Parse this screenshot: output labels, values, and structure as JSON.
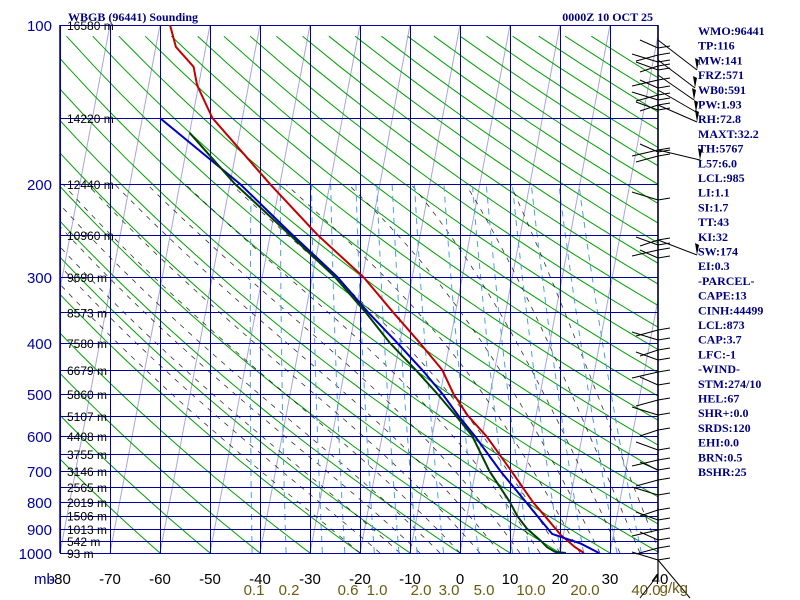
{
  "header": {
    "station": "WBGB (96441) Sounding",
    "time": "0000Z 10 OCT 25"
  },
  "chart_data": {
    "type": "skew-t",
    "title": "WBGB (96441) Sounding",
    "time_label": "0000Z 10 OCT 25",
    "y_axis_unit": "mb",
    "x_axis_unit": "g/kg",
    "pressure_ticks": [
      100,
      200,
      300,
      400,
      500,
      600,
      700,
      800,
      900,
      1000
    ],
    "temperature_ticks": [
      -80,
      -70,
      -60,
      -50,
      -40,
      -30,
      -20,
      -10,
      0,
      10,
      20,
      30,
      40
    ],
    "xlim": [
      -80,
      40
    ],
    "ylim": [
      1000,
      100
    ],
    "height_labels": [
      {
        "p": 100,
        "label": "16580 m"
      },
      {
        "p": 150,
        "label": "14220 m"
      },
      {
        "p": 200,
        "label": "12440 m"
      },
      {
        "p": 250,
        "label": "10960 m"
      },
      {
        "p": 300,
        "label": "9690 m"
      },
      {
        "p": 350,
        "label": "8573 m"
      },
      {
        "p": 400,
        "label": "7580 m"
      },
      {
        "p": 450,
        "label": "6679 m"
      },
      {
        "p": 500,
        "label": "5860 m"
      },
      {
        "p": 550,
        "label": "5107 m"
      },
      {
        "p": 600,
        "label": "4408 m"
      },
      {
        "p": 650,
        "label": "3755 m"
      },
      {
        "p": 700,
        "label": "3146 m"
      },
      {
        "p": 750,
        "label": "2565 m"
      },
      {
        "p": 800,
        "label": "2019 m"
      },
      {
        "p": 850,
        "label": "1506 m"
      },
      {
        "p": 900,
        "label": "1013 m"
      },
      {
        "p": 950,
        "label": "542 m"
      },
      {
        "p": 1000,
        "label": "93 m"
      }
    ],
    "mixing_ratio_labels": [
      "0.1",
      "0.2",
      "0.6",
      "1.0",
      "2.0",
      "3.0",
      "5.0",
      "10.0",
      "20.0",
      "40.0"
    ],
    "series": [
      {
        "id": "temperature",
        "color": "#c00000",
        "points": [
          {
            "p": 1000,
            "t": 24.8
          },
          {
            "p": 975,
            "t": 22.8
          },
          {
            "p": 925,
            "t": 19.5
          },
          {
            "p": 850,
            "t": 15.5
          },
          {
            "p": 800,
            "t": 12.6
          },
          {
            "p": 700,
            "t": 7.2
          },
          {
            "p": 600,
            "t": 0.8
          },
          {
            "p": 550,
            "t": -3.6
          },
          {
            "p": 500,
            "t": -7.3
          },
          {
            "p": 450,
            "t": -10.5
          },
          {
            "p": 400,
            "t": -16.0
          },
          {
            "p": 350,
            "t": -22.5
          },
          {
            "p": 300,
            "t": -29.8
          },
          {
            "p": 250,
            "t": -40.5
          },
          {
            "p": 200,
            "t": -52.0
          },
          {
            "p": 150,
            "t": -66.0
          },
          {
            "p": 130,
            "t": -70.3
          },
          {
            "p": 120,
            "t": -71.7
          },
          {
            "p": 110,
            "t": -76.0
          },
          {
            "p": 100,
            "t": -78.0
          }
        ]
      },
      {
        "id": "parcel",
        "color": "#0000c0",
        "points": [
          {
            "p": 1000,
            "t": 27.8
          },
          {
            "p": 960,
            "t": 23.8
          },
          {
            "p": 920,
            "t": 17.7
          },
          {
            "p": 850,
            "t": 14.0
          },
          {
            "p": 800,
            "t": 11.2
          },
          {
            "p": 700,
            "t": 5.0
          },
          {
            "p": 600,
            "t": -1.5
          },
          {
            "p": 550,
            "t": -5.5
          },
          {
            "p": 500,
            "t": -9.5
          },
          {
            "p": 450,
            "t": -14.5
          },
          {
            "p": 400,
            "t": -20.5
          },
          {
            "p": 350,
            "t": -27.5
          },
          {
            "p": 300,
            "t": -35.0
          },
          {
            "p": 250,
            "t": -45.5
          },
          {
            "p": 200,
            "t": -58.0
          },
          {
            "p": 150,
            "t": -76.5
          }
        ]
      },
      {
        "id": "dewpoint",
        "color": "#004000",
        "points": [
          {
            "p": 1000,
            "t": 21.2
          },
          {
            "p": 995,
            "t": 19.0
          },
          {
            "p": 975,
            "t": 17.2
          },
          {
            "p": 950,
            "t": 15.8
          },
          {
            "p": 900,
            "t": 12.5
          },
          {
            "p": 850,
            "t": 10.0
          },
          {
            "p": 800,
            "t": 8.0
          },
          {
            "p": 700,
            "t": 2.8
          },
          {
            "p": 600,
            "t": -2.0
          },
          {
            "p": 550,
            "t": -6.0
          },
          {
            "p": 500,
            "t": -10.5
          },
          {
            "p": 450,
            "t": -15.8
          },
          {
            "p": 400,
            "t": -22.0
          },
          {
            "p": 350,
            "t": -28.0
          },
          {
            "p": 300,
            "t": -35.5
          },
          {
            "p": 250,
            "t": -46.0
          },
          {
            "p": 200,
            "t": -59.0
          },
          {
            "p": 160,
            "t": -70.0
          }
        ]
      }
    ]
  },
  "indices": [
    "WMO:96441",
    "TP:116",
    "MW:141",
    "FRZ:571",
    "WB0:591",
    "PW:1.93",
    "RH:72.8",
    "MAXT:32.2",
    "TH:5767",
    "L57:6.0",
    "LCL:985",
    "LI:1.1",
    "SI:1.7",
    "TT:43",
    "KI:32",
    "SW:174",
    "EI:0.3",
    "-PARCEL-",
    "CAPE:13",
    "CINH:44499",
    "LCL:873",
    "CAP:3.7",
    "LFC:-1",
    "-WIND-",
    "STM:274/10",
    "HEL:67",
    "SHR+:0.0",
    "SRDS:120",
    "EHI:0.0",
    "BRN:0.5",
    "BSHR:25"
  ],
  "colors": {
    "grid": "#0000a0",
    "dry_adiabat": "#00a000",
    "moist_adiabat": "#000000",
    "mixing_ratio": "#4aa0e0",
    "temperature": "#c00000",
    "parcel": "#0000c0",
    "dewpoint": "#004000",
    "wind": "#000000",
    "text": "#000080",
    "mixing_label": "#6b5a10"
  }
}
